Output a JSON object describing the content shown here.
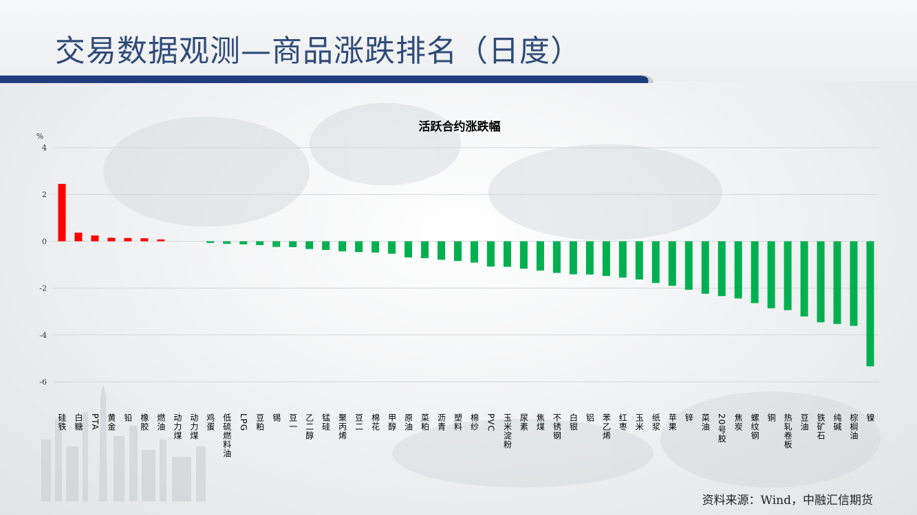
{
  "page": {
    "title": "交易数据观测—商品涨跌排名（日度）",
    "source": "资料来源：Wind，中融汇信期货",
    "accent_color": "#1f3d7a",
    "up_color": "#ff0000",
    "down_color": "#00b050"
  },
  "chart_data": {
    "type": "bar",
    "title": "活跃合约涨跌幅",
    "ylabel": "%",
    "ylim": [
      -6,
      4
    ],
    "yticks": [
      4,
      2,
      0,
      -2,
      -4,
      -6
    ],
    "grid": true,
    "legend": "none",
    "categories": [
      "硅铁",
      "白糖",
      "PTA",
      "黄金",
      "铅",
      "橡胶",
      "燃油",
      "动力煤",
      "动力煤",
      "鸡蛋",
      "低硫燃料油",
      "LPG",
      "豆粕",
      "锡",
      "豆一",
      "乙二醇",
      "锰硅",
      "聚丙烯",
      "豆二",
      "棉花",
      "甲醇",
      "原油",
      "菜粕",
      "沥青",
      "塑料",
      "棉纱",
      "PVC",
      "玉米淀粉",
      "尿素",
      "焦煤",
      "不锈钢",
      "白银",
      "铝",
      "苯乙烯",
      "红枣",
      "玉米",
      "纸浆",
      "苹果",
      "锌",
      "菜油",
      "20号胶",
      "焦炭",
      "螺纹钢",
      "铜",
      "热轧卷板",
      "豆油",
      "铁矿石",
      "纯碱",
      "棕榈油",
      "镍"
    ],
    "values": [
      2.45,
      0.37,
      0.25,
      0.15,
      0.14,
      0.13,
      0.08,
      0.0,
      0.0,
      -0.07,
      -0.11,
      -0.13,
      -0.16,
      -0.24,
      -0.25,
      -0.33,
      -0.37,
      -0.43,
      -0.46,
      -0.48,
      -0.53,
      -0.69,
      -0.72,
      -0.79,
      -0.84,
      -0.91,
      -1.08,
      -1.09,
      -1.17,
      -1.25,
      -1.35,
      -1.41,
      -1.42,
      -1.48,
      -1.55,
      -1.63,
      -1.78,
      -1.9,
      -2.07,
      -2.24,
      -2.34,
      -2.44,
      -2.64,
      -2.86,
      -2.94,
      -3.21,
      -3.46,
      -3.53,
      -3.61,
      -5.34
    ]
  }
}
